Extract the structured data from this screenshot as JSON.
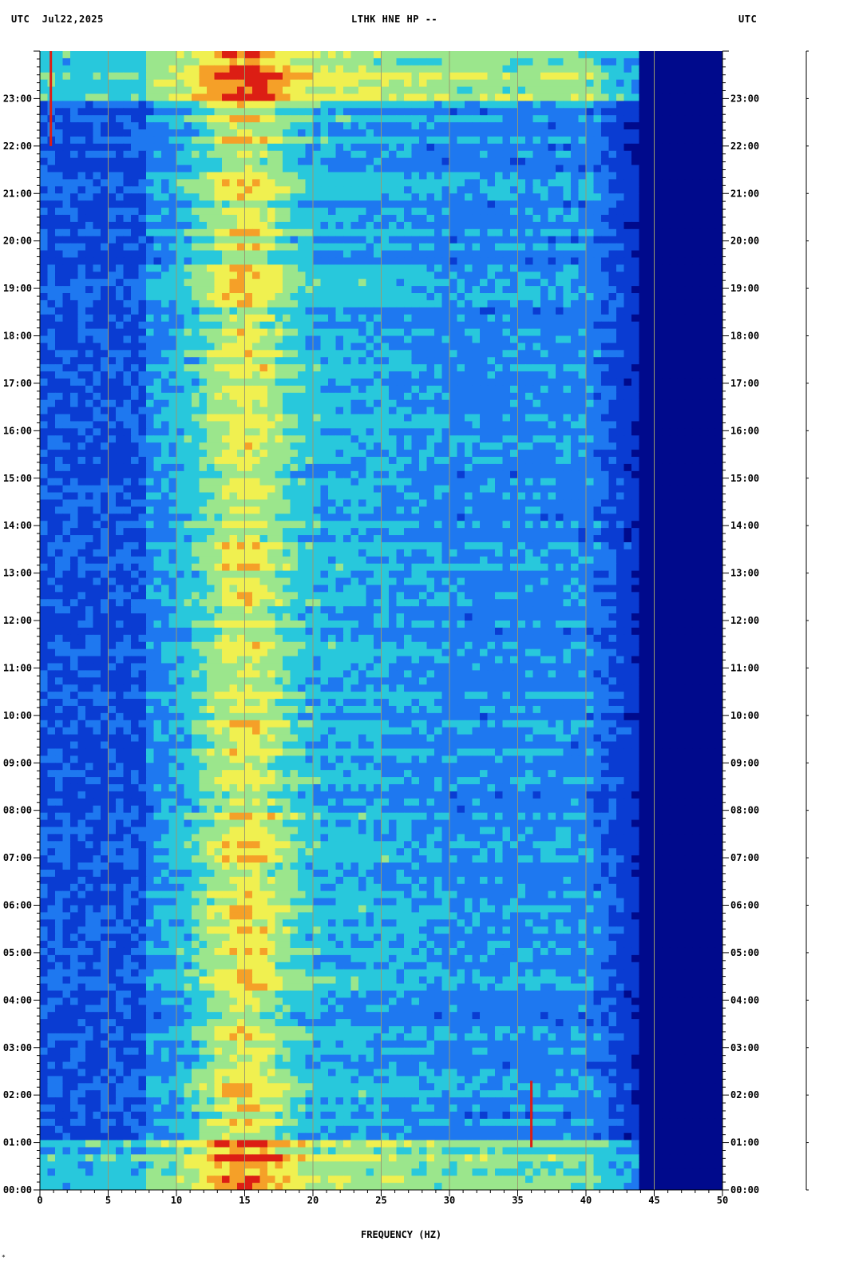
{
  "header": {
    "left": "UTC  Jul22,2025",
    "center": "LTHK HNE HP --",
    "right": "UTC"
  },
  "corner_mark": "*",
  "chart_data": {
    "type": "heatmap",
    "title": "LTHK HNE HP --",
    "date": "Jul22,2025",
    "timezone": "UTC",
    "xlabel": "FREQUENCY (HZ)",
    "ylabel": "",
    "xlim": [
      0,
      50
    ],
    "x_major_ticks": [
      0,
      5,
      10,
      15,
      20,
      25,
      30,
      35,
      40,
      45,
      50
    ],
    "y_tick_labels": [
      "00:00",
      "01:00",
      "02:00",
      "03:00",
      "04:00",
      "05:00",
      "06:00",
      "07:00",
      "08:00",
      "09:00",
      "10:00",
      "11:00",
      "12:00",
      "13:00",
      "14:00",
      "15:00",
      "16:00",
      "17:00",
      "18:00",
      "19:00",
      "20:00",
      "21:00",
      "22:00",
      "23:00"
    ],
    "ylim_hours": [
      0,
      24
    ],
    "vertical_gridlines_hz": [
      5,
      10,
      15,
      20,
      25,
      30,
      35,
      40,
      45
    ],
    "colormap": [
      "#000a8c",
      "#0a3cd2",
      "#1e78f0",
      "#28c8dc",
      "#9be68c",
      "#f0f050",
      "#f5a028",
      "#dc1e14"
    ],
    "features": [
      {
        "name": "primary energy band",
        "freq_range_hz": [
          11,
          20
        ],
        "level": "high"
      },
      {
        "name": "broadband noise",
        "freq_range_hz": [
          0,
          43
        ],
        "level": "moderate"
      },
      {
        "name": "high-frequency cutoff",
        "freq_hz": 44,
        "level": "low above cutoff"
      },
      {
        "name": "strong wideband energy",
        "time_range_h": [
          0.0,
          1.0
        ],
        "level": "high"
      },
      {
        "name": "strong wideband energy",
        "time_range_h": [
          23.0,
          24.0
        ],
        "level": "high"
      },
      {
        "name": "narrow line near 1 Hz",
        "freq_hz": 0.8,
        "time_range_h": [
          22.0,
          24.0
        ]
      },
      {
        "name": "narrow line near 36 Hz",
        "freq_hz": 36,
        "time_range_h": [
          0.9,
          2.3
        ]
      }
    ]
  }
}
